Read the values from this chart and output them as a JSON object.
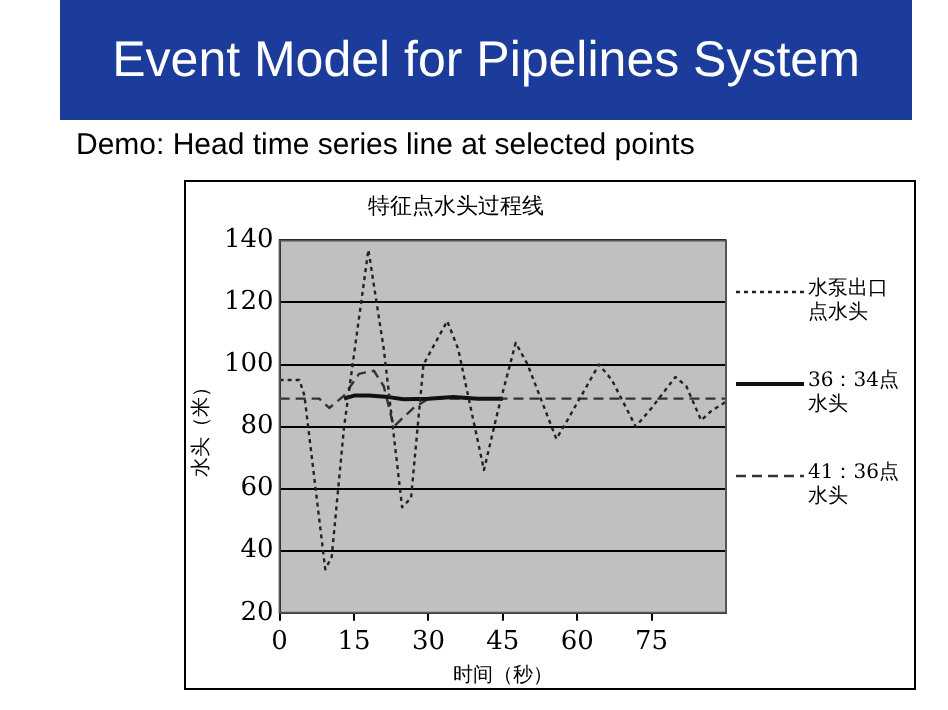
{
  "chart_data": {
    "type": "line",
    "title": "Event Model for Pipelines System",
    "subtitle": "Demo: Head time series line at selected points",
    "annotations": [
      "特征点水头过程线"
    ],
    "xlabel": "时间（秒）",
    "ylabel": "水头（米）",
    "xlim": [
      0,
      90
    ],
    "xticks": [
      0,
      15,
      30,
      45,
      60,
      75
    ],
    "ylim": [
      20,
      140
    ],
    "yticks": [
      20,
      40,
      60,
      80,
      100,
      120,
      140
    ],
    "grid": "y",
    "legend": "right",
    "marker": "none",
    "series": [
      {
        "name": "水泵出口点水头",
        "color": "#222222",
        "line_style": "dotted",
        "x": [
          0,
          4,
          5,
          9.2,
          10.5,
          13,
          17.9,
          21,
          24.7,
          26.5,
          29,
          33.8,
          36,
          41.2,
          44,
          47.6,
          50,
          55.8,
          58,
          64.4,
          67,
          71.8,
          75,
          79.8,
          82,
          85,
          87,
          90
        ],
        "values": [
          95,
          95,
          90,
          34,
          38,
          80,
          137,
          105,
          54,
          57,
          100,
          114,
          105,
          66,
          85,
          107,
          100,
          76,
          82,
          100,
          95,
          80,
          86,
          96,
          93,
          82,
          85,
          88
        ]
      },
      {
        "name": "36：34点水头",
        "color": "#111111",
        "line_style": "solid",
        "x": [
          13,
          15,
          18,
          22,
          25,
          30,
          35,
          40,
          45
        ],
        "values": [
          89,
          90,
          90,
          89.5,
          88.8,
          89,
          89.5,
          89,
          89
        ]
      },
      {
        "name": "41：36点水头",
        "color": "#333333",
        "line_style": "dashed",
        "x": [
          0,
          8,
          10,
          13,
          16,
          19,
          21,
          23,
          27,
          30,
          45,
          60,
          75,
          90
        ],
        "values": [
          89,
          89,
          86,
          90,
          97,
          98,
          93,
          80,
          86,
          89,
          89,
          89,
          89,
          89
        ]
      }
    ]
  }
}
